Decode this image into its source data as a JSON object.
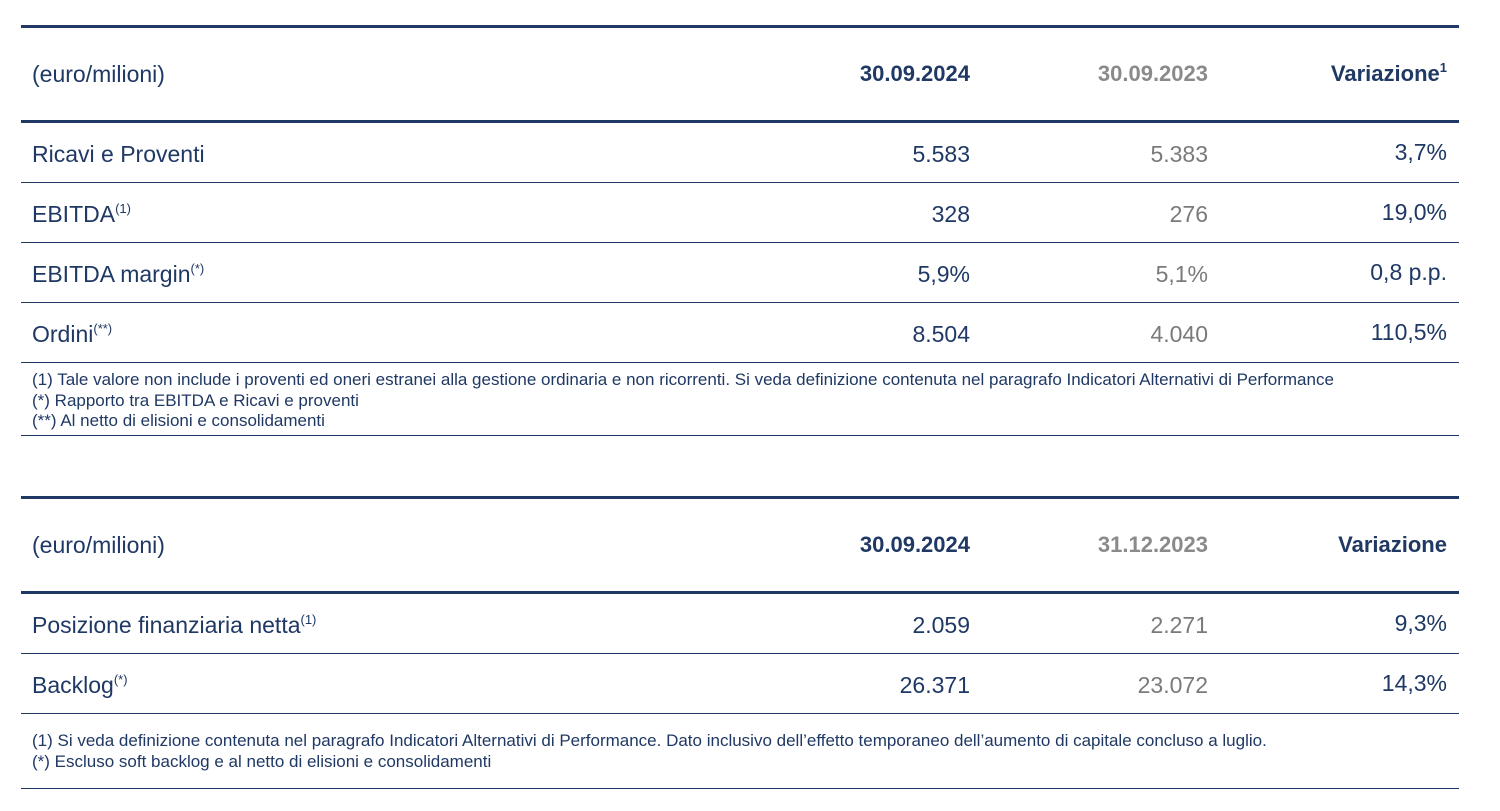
{
  "table1": {
    "header": {
      "label": "(euro/milioni)",
      "col_current": "30.09.2024",
      "col_previous": "30.09.2023",
      "col_variation": "Variazione",
      "col_variation_sup": "1"
    },
    "rows": [
      {
        "label": "Ricavi e Proventi",
        "sup": "",
        "current": "5.583",
        "previous": "5.383",
        "variation": "3,7%"
      },
      {
        "label": "EBITDA",
        "sup": "(1)",
        "current": "328",
        "previous": "276",
        "variation": "19,0%"
      },
      {
        "label": "EBITDA margin",
        "sup": "(*)",
        "current": "5,9%",
        "previous": "5,1%",
        "variation": "0,8 p.p."
      },
      {
        "label": "Ordini",
        "sup": "(**)",
        "current": "8.504",
        "previous": "4.040",
        "variation": "110,5%"
      }
    ],
    "notes": [
      "(1) Tale valore non include i proventi ed oneri estranei alla gestione ordinaria e non ricorrenti. Si veda definizione contenuta nel paragrafo Indicatori Alternativi di Performance",
      "(*) Rapporto tra EBITDA e Ricavi e proventi",
      "(**) Al netto di elisioni e consolidamenti"
    ]
  },
  "table2": {
    "header": {
      "label": "(euro/milioni)",
      "col_current": "30.09.2024",
      "col_previous": "31.12.2023",
      "col_variation": "Variazione"
    },
    "rows": [
      {
        "label": "Posizione finanziaria netta",
        "sup": "(1)",
        "current": "2.059",
        "previous": "2.271",
        "variation": "9,3%"
      },
      {
        "label": "Backlog",
        "sup": "(*)",
        "current": "26.371",
        "previous": "23.072",
        "variation": "14,3%"
      }
    ],
    "notes": [
      "(1) Si veda definizione contenuta nel paragrafo Indicatori Alternativi di Performance. Dato inclusivo dell’effetto temporaneo dell’aumento di capitale concluso a luglio.",
      "(*) Escluso soft backlog e al netto di elisioni e consolidamenti"
    ]
  },
  "colors": {
    "primary_text": "#1f3864",
    "secondary_text": "#7a7a7a"
  }
}
